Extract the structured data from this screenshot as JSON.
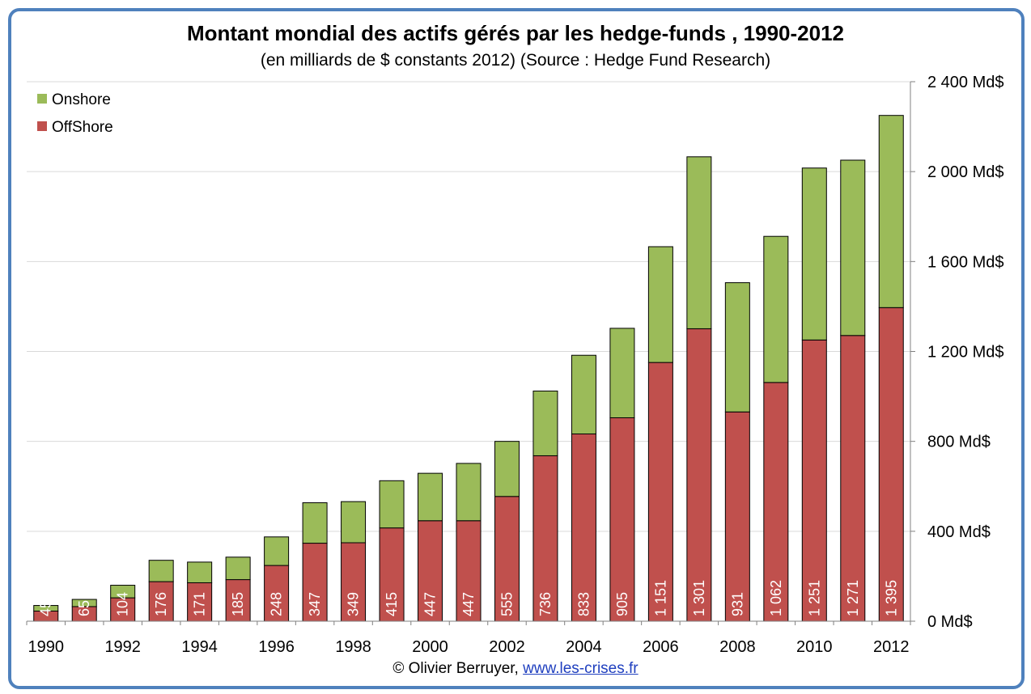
{
  "title": "Montant mondial des actifs gérés par les hedge-funds , 1990-2012",
  "subtitle": "(en milliards de $ constants 2012) (Source : Hedge Fund Research)",
  "footer": {
    "copyright": "© Olivier Berruyer, ",
    "link_text": "www.les-crises.fr"
  },
  "colors": {
    "onshore": "#9bbb59",
    "offshore": "#c0504d",
    "frame": "#4f81bd",
    "grid": "#d9d9d9"
  },
  "chart_data": {
    "type": "bar",
    "stacked": true,
    "categories": [
      "1990",
      "1991",
      "1992",
      "1993",
      "1994",
      "1995",
      "1996",
      "1997",
      "1998",
      "1999",
      "2000",
      "2001",
      "2002",
      "2003",
      "2004",
      "2005",
      "2006",
      "2007",
      "2008",
      "2009",
      "2010",
      "2011",
      "2012"
    ],
    "x_tick_labels": [
      "1990",
      "",
      "1992",
      "",
      "1994",
      "",
      "1996",
      "",
      "1998",
      "",
      "2000",
      "",
      "2002",
      "",
      "2004",
      "",
      "2006",
      "",
      "2008",
      "",
      "2010",
      "",
      "2012"
    ],
    "series": [
      {
        "name": "OffShore",
        "color": "#c0504d",
        "values": [
          45,
          65,
          104,
          176,
          171,
          185,
          248,
          347,
          349,
          415,
          447,
          447,
          555,
          736,
          833,
          905,
          1151,
          1301,
          931,
          1062,
          1251,
          1271,
          1395
        ],
        "data_labels": [
          "45",
          "65",
          "104",
          "176",
          "171",
          "185",
          "248",
          "347",
          "349",
          "415",
          "447",
          "447",
          "555",
          "736",
          "833",
          "905",
          "1 151",
          "1 301",
          "931",
          "1 062",
          "1 251",
          "1 271",
          "1 395"
        ]
      },
      {
        "name": "Onshore",
        "color": "#9bbb59",
        "values": [
          25,
          32,
          56,
          95,
          92,
          100,
          127,
          180,
          183,
          210,
          211,
          255,
          245,
          288,
          350,
          398,
          515,
          765,
          575,
          650,
          765,
          780,
          855
        ]
      }
    ],
    "legend": {
      "placement": "top-left",
      "entries": [
        "Onshore",
        "OffShore"
      ]
    },
    "y_axis": {
      "position": "right",
      "range": [
        0,
        2400
      ],
      "ticks": [
        0,
        400,
        800,
        1200,
        1600,
        2000,
        2400
      ],
      "tick_labels": [
        "0 Md$",
        "400 Md$",
        "800 Md$",
        "1 200 Md$",
        "1 600 Md$",
        "2 000 Md$",
        "2 400 Md$"
      ]
    },
    "grid": true
  }
}
